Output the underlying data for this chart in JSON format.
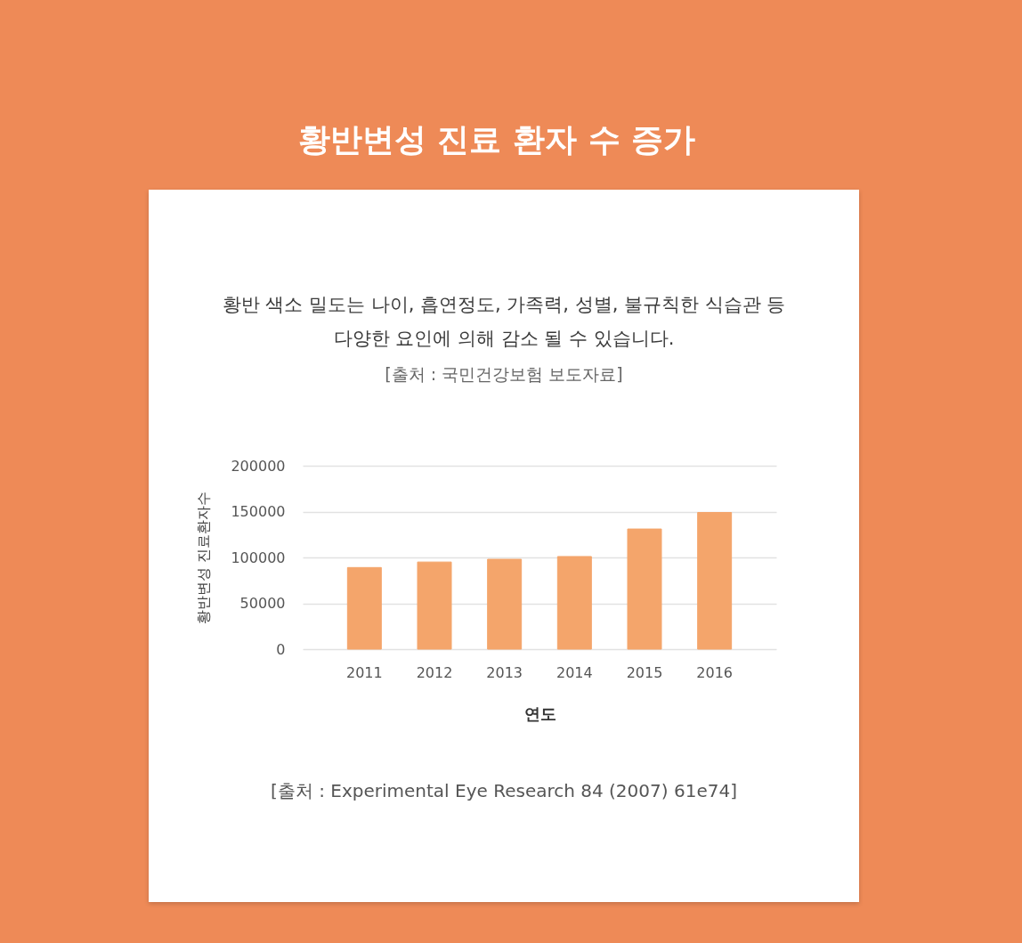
{
  "chart_data": {
    "type": "bar",
    "title": "황반변성 진료 환자 수 증가",
    "subtitle": "황반 색소 밀도는 나이, 흡연정도, 가족력, 성별, 불규칙한 식습관 등 다양한 요인에 의해 감소 될 수 있습니다.",
    "annotations": [
      "[출처 : 국민건강보험 보도자료]",
      "[출처 : Experimental Eye Research 84 (2007) 61e74]"
    ],
    "xlabel": "연도",
    "ylabel": "황반변성 진료환자수",
    "categories": [
      "2011",
      "2012",
      "2013",
      "2014",
      "2015",
      "2016"
    ],
    "values": [
      89000,
      95000,
      98000,
      101000,
      131000,
      149000
    ],
    "color": "#f4a56b",
    "ylim": [
      0,
      200000
    ],
    "yticks": [
      0,
      50000,
      100000,
      150000,
      200000
    ],
    "grid": "y"
  }
}
